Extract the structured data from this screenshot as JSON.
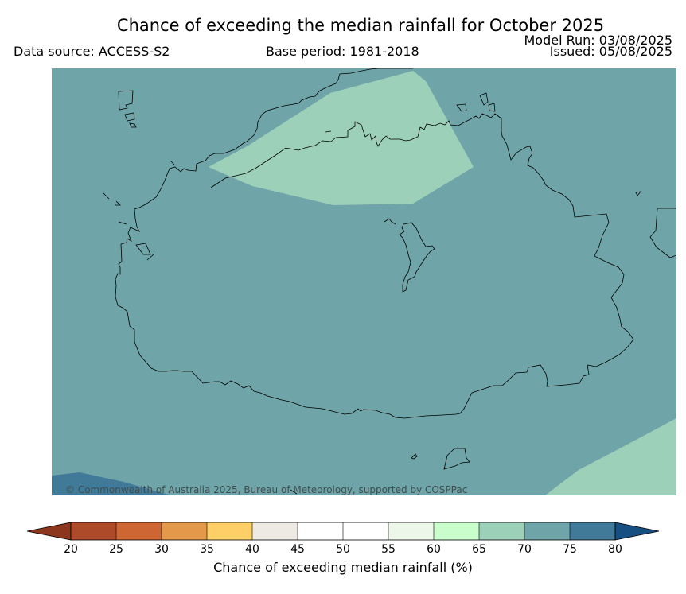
{
  "header": {
    "title": "Chance of exceeding the median rainfall for October 2025",
    "data_source": "Data source: ACCESS-S2",
    "base_period": "Base period: 1981-2018",
    "model_run": "Model Run: 03/08/2025",
    "issued": "Issued: 05/08/2025"
  },
  "map": {
    "copyright": "© Commonwealth of Australia 2025, Bureau of Meteorology, supported by COSPPac",
    "background_category": "70-75",
    "colors": {
      "c70_75": "#6fa5a8",
      "c65_70": "#9dd0b9",
      "c75_80": "#417a98",
      "coast": "#000000"
    }
  },
  "colorbar": {
    "label": "Chance of exceeding median rainfall (%)",
    "ticks": [
      "20",
      "25",
      "30",
      "35",
      "40",
      "45",
      "50",
      "55",
      "60",
      "65",
      "70",
      "75",
      "80"
    ],
    "colors": [
      "#ad4a2a",
      "#ce6634",
      "#e3984a",
      "#fdcf66",
      "#edeae4",
      "#ffffff",
      "#ffffff",
      "#ecf7e9",
      "#c9fdcb",
      "#9dd0b9",
      "#6fa5a8",
      "#417a98"
    ],
    "under_color": "#8b361d",
    "over_color": "#174f82"
  }
}
